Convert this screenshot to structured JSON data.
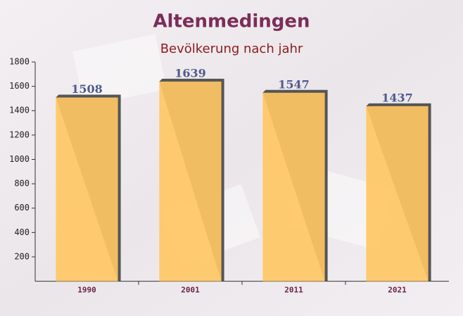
{
  "chart_data": {
    "type": "bar",
    "title": "Altenmedingen",
    "subtitle": "Bevölkerung nach jahr",
    "categories": [
      "1990",
      "2001",
      "2011",
      "2021"
    ],
    "values": [
      1508,
      1639,
      1547,
      1437
    ],
    "color": "#ffc764",
    "ylim": [
      0,
      1800
    ],
    "yticks": [
      200,
      400,
      600,
      800,
      1000,
      1200,
      1400,
      1600,
      1800
    ]
  }
}
